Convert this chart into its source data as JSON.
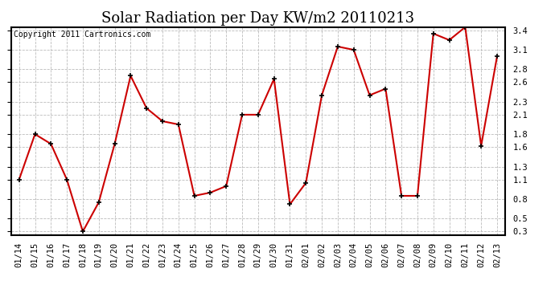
{
  "title": "Solar Radiation per Day KW/m2 20110213",
  "copyright_text": "Copyright 2011 Cartronics.com",
  "x_labels": [
    "01/14",
    "01/15",
    "01/16",
    "01/17",
    "01/18",
    "01/19",
    "01/20",
    "01/21",
    "01/22",
    "01/23",
    "01/24",
    "01/25",
    "01/26",
    "01/27",
    "01/28",
    "01/29",
    "01/30",
    "01/31",
    "02/01",
    "02/02",
    "02/03",
    "02/04",
    "02/05",
    "02/06",
    "02/07",
    "02/08",
    "02/09",
    "02/10",
    "02/11",
    "02/12",
    "02/13"
  ],
  "y_values": [
    1.1,
    1.8,
    1.65,
    1.1,
    0.3,
    0.75,
    1.65,
    2.7,
    2.2,
    2.0,
    1.95,
    0.85,
    0.9,
    1.0,
    2.1,
    2.1,
    2.65,
    0.72,
    1.05,
    2.4,
    3.15,
    3.1,
    2.4,
    2.5,
    0.85,
    0.85,
    3.35,
    3.25,
    3.45,
    1.62,
    3.0
  ],
  "line_color": "#cc0000",
  "background_color": "#ffffff",
  "grid_color": "#bbbbbb",
  "yticks": [
    0.3,
    0.5,
    0.8,
    1.1,
    1.3,
    1.6,
    1.8,
    2.1,
    2.3,
    2.6,
    2.8,
    3.1,
    3.4
  ],
  "title_fontsize": 13,
  "label_fontsize": 7.5,
  "copyright_fontsize": 7
}
